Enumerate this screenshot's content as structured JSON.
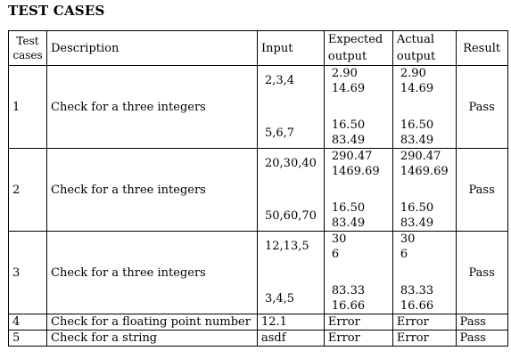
{
  "heading": "TEST CASES",
  "columns": {
    "test_cases_line1": "Test",
    "test_cases_line2": "cases",
    "description": "Description",
    "input": "Input",
    "expected_line1": "Expected",
    "expected_line2": "output",
    "actual_line1": "Actual",
    "actual_line2": "output",
    "result": "Result"
  },
  "rows": [
    {
      "num": "1",
      "description": "Check for a three integers",
      "input_a": "2,3,4",
      "input_b": "5,6,7",
      "expected_a1": "2.90",
      "expected_a2": "14.69",
      "expected_b1": "16.50",
      "expected_b2": "83.49",
      "actual_a1": "2.90",
      "actual_a2": "14.69",
      "actual_b1": "16.50",
      "actual_b2": "83.49",
      "result": "Pass"
    },
    {
      "num": "2",
      "description": "Check for a three integers",
      "input_a": "20,30,40",
      "input_b": "50,60,70",
      "expected_a1": "290.47",
      "expected_a2": "1469.69",
      "expected_b1": "16.50",
      "expected_b2": "83.49",
      "actual_a1": "290.47",
      "actual_a2": "1469.69",
      "actual_b1": "16.50",
      "actual_b2": "83.49",
      "result": "Pass"
    },
    {
      "num": "3",
      "description": "Check for a three integers",
      "input_a": "12,13,5",
      "input_b": "3,4,5",
      "expected_a1": "30",
      "expected_a2": "6",
      "expected_b1": "83.33",
      "expected_b2": "16.66",
      "actual_a1": "30",
      "actual_a2": "6",
      "actual_b1": "83.33",
      "actual_b2": "16.66",
      "result": "Pass"
    },
    {
      "num": "4",
      "description": "Check for a floating point number",
      "input": "12.1",
      "expected": "Error",
      "actual": "Error",
      "result": "Pass"
    },
    {
      "num": "5",
      "description": "Check for a string",
      "input": "asdf",
      "expected": "Error",
      "actual": "Error",
      "result": "Pass"
    }
  ]
}
